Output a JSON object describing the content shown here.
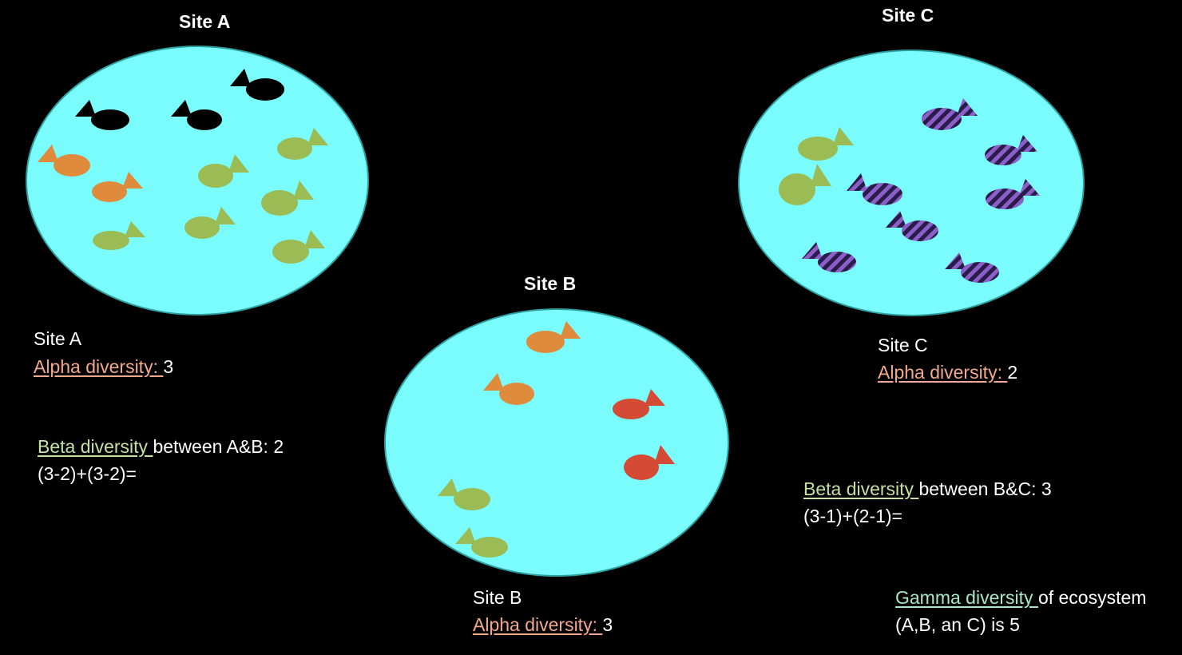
{
  "colors": {
    "background": "#000000",
    "pond": "#7afcfc",
    "pond_stroke": "#2e9e9e",
    "black_fish": "#000000",
    "orange_fish": "#e08a3c",
    "green_fish": "#9bbb55",
    "red_fish": "#d44a35",
    "striped_fish_dark": "#2a1b4a",
    "striped_fish_light": "#8a5fc8",
    "alpha_label": "#f2a98d",
    "beta_label": "#c6e0a4",
    "gamma_label": "#a8e6c8"
  },
  "sites": [
    {
      "id": "A",
      "title": "Site A",
      "label": "Site A",
      "alpha_label": "Alpha diversity: ",
      "alpha_value": "3",
      "fish": [
        {
          "species": "black"
        },
        {
          "species": "black"
        },
        {
          "species": "black"
        },
        {
          "species": "orange"
        },
        {
          "species": "orange"
        },
        {
          "species": "green"
        },
        {
          "species": "green"
        },
        {
          "species": "green"
        },
        {
          "species": "green"
        },
        {
          "species": "green"
        },
        {
          "species": "green"
        }
      ]
    },
    {
      "id": "B",
      "title": "Site B",
      "label": "Site B",
      "alpha_label": "Alpha diversity: ",
      "alpha_value": "3",
      "fish": [
        {
          "species": "orange"
        },
        {
          "species": "orange"
        },
        {
          "species": "red"
        },
        {
          "species": "red"
        },
        {
          "species": "green"
        },
        {
          "species": "green"
        }
      ]
    },
    {
      "id": "C",
      "title": "Site C",
      "label": "Site C",
      "alpha_label": "Alpha diversity: ",
      "alpha_value": "2",
      "fish": [
        {
          "species": "striped"
        },
        {
          "species": "striped"
        },
        {
          "species": "striped"
        },
        {
          "species": "striped"
        },
        {
          "species": "striped"
        },
        {
          "species": "striped"
        },
        {
          "species": "striped"
        },
        {
          "species": "green"
        },
        {
          "species": "green"
        }
      ]
    }
  ],
  "beta_ab": {
    "label": "Beta diversity ",
    "rest": "between A&B: 2",
    "formula": "(3-2)+(3-2)="
  },
  "beta_bc": {
    "label": "Beta diversity ",
    "rest": "between B&C: 3",
    "formula": "(3-1)+(2-1)="
  },
  "gamma": {
    "label": "Gamma diversity ",
    "rest": "of ecosystem",
    "line2": "(A,B, an C) is 5"
  }
}
